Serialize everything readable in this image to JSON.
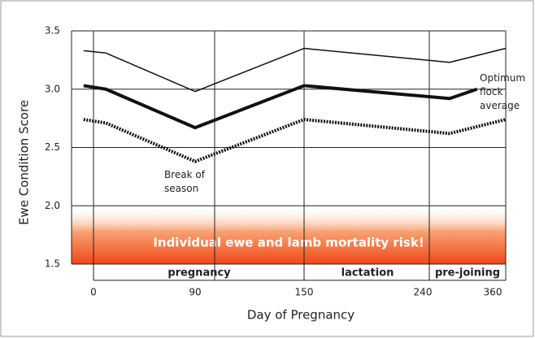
{
  "chart_data": {
    "type": "line",
    "ylabel": "Ewe Condition Score",
    "xlabel": "Day of Pregnancy",
    "xlim": [
      -20,
      380
    ],
    "xticks": [
      0,
      90,
      150,
      240,
      360
    ],
    "ylim": [
      1.5,
      3.5
    ],
    "yticks": [
      3.5,
      {
        "value": 3,
        "label": "3.0"
      },
      2.5,
      {
        "value": 2,
        "label": "2.0"
      },
      1.5
    ],
    "grid": true,
    "series": [
      {
        "color": "#111111",
        "line_style": "solid",
        "width": 1.5,
        "x": [
          -9,
          11,
          90,
          150,
          286,
          380
        ],
        "values": [
          3.33,
          3.31,
          2.98,
          3.35,
          3.23,
          3.35
        ]
      },
      {
        "color": "#111111",
        "line_style": "solid",
        "width": 4,
        "x": [
          -9,
          11,
          90,
          150,
          286,
          333
        ],
        "values": [
          3.03,
          3.0,
          2.67,
          3.03,
          2.92,
          3.0
        ]
      },
      {
        "color": "#111111",
        "line_style": "dotted",
        "width": 4,
        "x": [
          -9,
          11,
          90,
          150,
          286,
          380
        ],
        "values": [
          2.74,
          2.71,
          2.38,
          2.74,
          2.62,
          2.74
        ]
      }
    ],
    "risk_zone": {
      "label": "Individual ewe and lamb mortality risk!",
      "range": [
        1.5,
        2
      ]
    },
    "phases": [
      "pregnancy",
      "lactation",
      "pre-joining"
    ],
    "annotations": [
      "Break of season",
      "Optimum flock average"
    ]
  }
}
